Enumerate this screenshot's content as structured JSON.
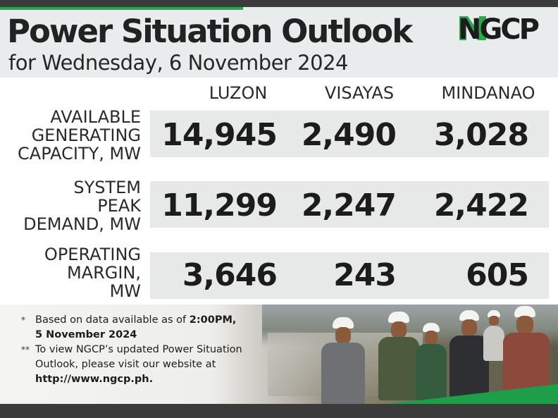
{
  "header": {
    "title": "Power Situation Outlook",
    "subtitle": "for Wednesday, 6 November 2024",
    "logo_text": "NGCP"
  },
  "columns": [
    "LUZON",
    "VISAYAS",
    "MINDANAO"
  ],
  "rows": [
    {
      "label_lines": [
        "AVAILABLE",
        "GENERATING",
        "CAPACITY, MW"
      ],
      "values": [
        "14,945",
        "2,490",
        "3,028"
      ]
    },
    {
      "label_lines": [
        "SYSTEM",
        "PEAK",
        "DEMAND, MW"
      ],
      "values": [
        "11,299",
        "2,247",
        "2,422"
      ]
    },
    {
      "label_lines": [
        "OPERATING",
        "MARGIN,",
        "MW"
      ],
      "values": [
        "3,646",
        "243",
        "605"
      ]
    }
  ],
  "notes": {
    "note1_mark": "*",
    "note1_text": "Based on data available as of ",
    "note1_bold1": "2:00PM,",
    "note1_bold2": "5 November 2024",
    "note2_mark": "**",
    "note2_line1": "To view NGCP’s updated Power Situation",
    "note2_line2": "Outlook, please visit our website at",
    "note2_link": "http://www.ngcp.ph."
  },
  "colors": {
    "accent_green": "#2aa84a",
    "dark_bar": "#3b3b3b",
    "row_band": "#e7e8e8"
  }
}
